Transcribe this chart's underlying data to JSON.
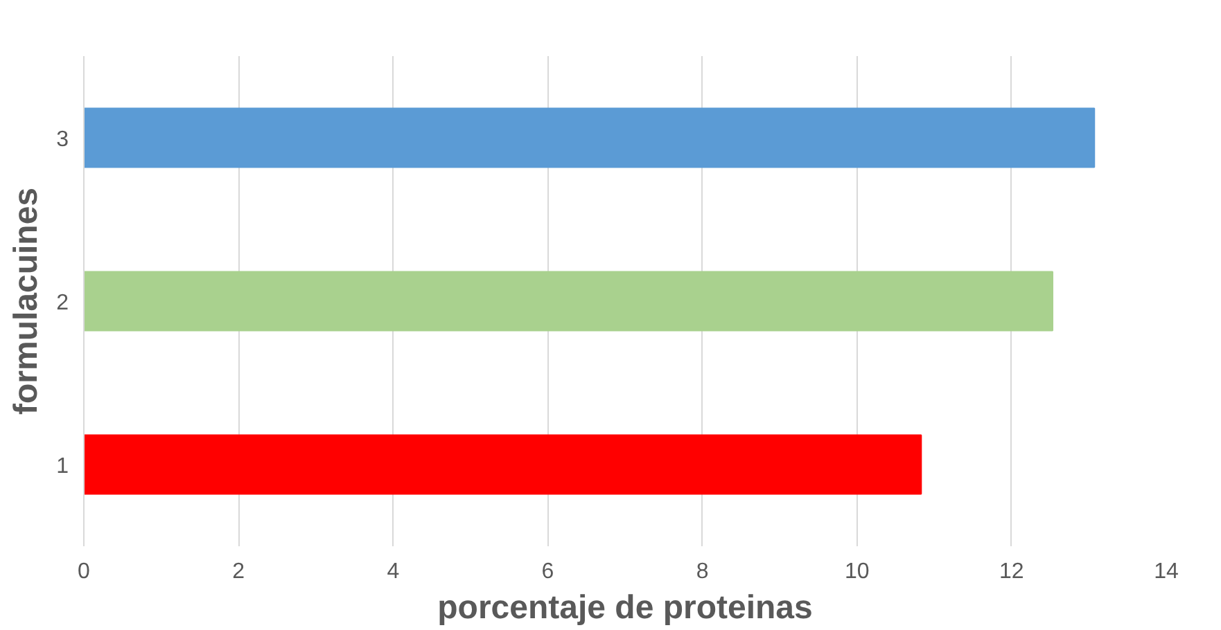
{
  "chart_data": {
    "type": "bar",
    "orientation": "horizontal",
    "xlabel": "porcentaje de proteinas",
    "ylabel": "formulacuines",
    "categories": [
      "3",
      "2",
      "1"
    ],
    "values": [
      13.07,
      12.53,
      10.83
    ],
    "colors": [
      "#5b9bd5",
      "#a9d18e",
      "#ff0000"
    ],
    "xlim": [
      0,
      14
    ],
    "xticks": [
      0,
      2,
      4,
      6,
      8,
      10,
      12,
      14
    ],
    "grid": "x"
  }
}
